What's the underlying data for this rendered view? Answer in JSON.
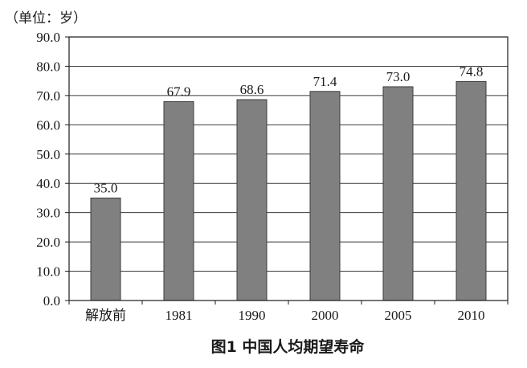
{
  "chart_data": {
    "type": "bar",
    "unit_label": "（单位：岁）",
    "title": "图1 中国人均期望寿命",
    "xlabel": "",
    "ylabel": "",
    "categories": [
      "解放前",
      "1981",
      "1990",
      "2000",
      "2005",
      "2010"
    ],
    "values": [
      35.0,
      67.9,
      68.6,
      71.4,
      73.0,
      74.8
    ],
    "data_labels": [
      "35.0",
      "67.9",
      "68.6",
      "71.4",
      "73.0",
      "74.8"
    ],
    "ylim": [
      0,
      90
    ],
    "yticks": [
      0,
      10,
      20,
      30,
      40,
      50,
      60,
      70,
      80,
      90
    ],
    "ytick_labels": [
      "0.0",
      "10.0",
      "20.0",
      "30.0",
      "40.0",
      "50.0",
      "60.0",
      "70.0",
      "80.0",
      "90.0"
    ],
    "grid": "horizontal",
    "legend": "none",
    "bar_color": "#808080"
  }
}
